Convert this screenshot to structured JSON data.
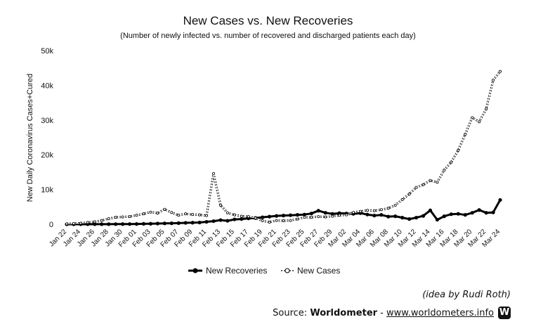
{
  "chart_data": {
    "type": "line",
    "title": "New Cases vs. New Recoveries",
    "subtitle": "(Number of newly infected vs. number of recovered and discharged patients each day)",
    "ylabel": "New Daily Coronavirus Cases+Cured",
    "xlabel": "",
    "ylim": [
      0,
      50000
    ],
    "yticks": [
      "0",
      "10k",
      "20k",
      "30k",
      "40k",
      "50k"
    ],
    "ytick_values": [
      0,
      10000,
      20000,
      30000,
      40000,
      50000
    ],
    "grid": false,
    "legend_position": "bottom",
    "x": [
      "Jan 22",
      "Jan 23",
      "Jan 24",
      "Jan 25",
      "Jan 26",
      "Jan 27",
      "Jan 28",
      "Jan 29",
      "Jan 30",
      "Jan 31",
      "Feb 01",
      "Feb 02",
      "Feb 03",
      "Feb 04",
      "Feb 05",
      "Feb 06",
      "Feb 07",
      "Feb 08",
      "Feb 09",
      "Feb 10",
      "Feb 11",
      "Feb 12",
      "Feb 13",
      "Feb 14",
      "Feb 15",
      "Feb 16",
      "Feb 17",
      "Feb 18",
      "Feb 19",
      "Feb 20",
      "Feb 21",
      "Feb 22",
      "Feb 23",
      "Feb 24",
      "Feb 25",
      "Feb 26",
      "Feb 27",
      "Feb 28",
      "Feb 29",
      "Mar 01",
      "Mar 02",
      "Mar 03",
      "Mar 04",
      "Mar 05",
      "Mar 06",
      "Mar 07",
      "Mar 08",
      "Mar 09",
      "Mar 10",
      "Mar 11",
      "Mar 12",
      "Mar 13",
      "Mar 14",
      "Mar 15",
      "Mar 16",
      "Mar 17",
      "Mar 18",
      "Mar 19",
      "Mar 20",
      "Mar 21",
      "Mar 22",
      "Mar 23",
      "Mar 24"
    ],
    "xtick_labels": [
      "Jan 22",
      "Jan 24",
      "Jan 26",
      "Jan 28",
      "Jan 30",
      "Feb 01",
      "Feb 03",
      "Feb 05",
      "Feb 07",
      "Feb 09",
      "Feb 11",
      "Feb 13",
      "Feb 15",
      "Feb 17",
      "Feb 19",
      "Feb 21",
      "Feb 23",
      "Feb 25",
      "Feb 27",
      "Feb 29",
      "Mar 02",
      "Mar 04",
      "Mar 06",
      "Mar 08",
      "Mar 10",
      "Mar 12",
      "Mar 14",
      "Mar 16",
      "Mar 18",
      "Mar 20",
      "Mar 22",
      "Mar 24"
    ],
    "series": [
      {
        "name": "New Recoveries",
        "style": "solid",
        "color": "#000000",
        "values": [
          0,
          0,
          10,
          10,
          20,
          20,
          30,
          40,
          50,
          60,
          80,
          120,
          150,
          200,
          250,
          280,
          330,
          400,
          450,
          500,
          700,
          900,
          1200,
          1000,
          1400,
          1500,
          1700,
          1800,
          2000,
          2200,
          2400,
          2500,
          2600,
          2700,
          2800,
          3100,
          3900,
          3300,
          3000,
          3200,
          3100,
          3000,
          3200,
          2800,
          2500,
          2700,
          2200,
          2300,
          1900,
          1500,
          1900,
          2400,
          4000,
          1300,
          2300,
          2900,
          3000,
          2700,
          3300,
          4100,
          3300,
          3400,
          7000
        ]
      },
      {
        "name": "New Cases",
        "style": "dashed",
        "color": "#000000",
        "values": [
          100,
          200,
          300,
          500,
          700,
          1100,
          1600,
          2000,
          2100,
          2200,
          2600,
          3000,
          3500,
          3200,
          4300,
          3400,
          2600,
          3000,
          2800,
          2700,
          2500,
          14600,
          5500,
          3300,
          2700,
          2300,
          2200,
          1800,
          1000,
          600,
          1100,
          1000,
          1100,
          1500,
          2000,
          2000,
          2200,
          2100,
          2300,
          2600,
          2700,
          3400,
          3700,
          4000,
          3900,
          4200,
          4600,
          5500,
          7100,
          8700,
          10600,
          11400,
          12600,
          12100,
          15600,
          17900,
          21300,
          25900,
          30700,
          29500,
          33200,
          41500,
          44000
        ]
      }
    ]
  },
  "legend": {
    "recoveries_label": "New Recoveries",
    "cases_label": "New Cases"
  },
  "footer": {
    "credit": "(idea by Rudi Roth)",
    "source_prefix": "Source: ",
    "source_name": "Worldometer",
    "source_sep": " - ",
    "source_url": "www.worldometers.info",
    "logo_letter": "W"
  }
}
